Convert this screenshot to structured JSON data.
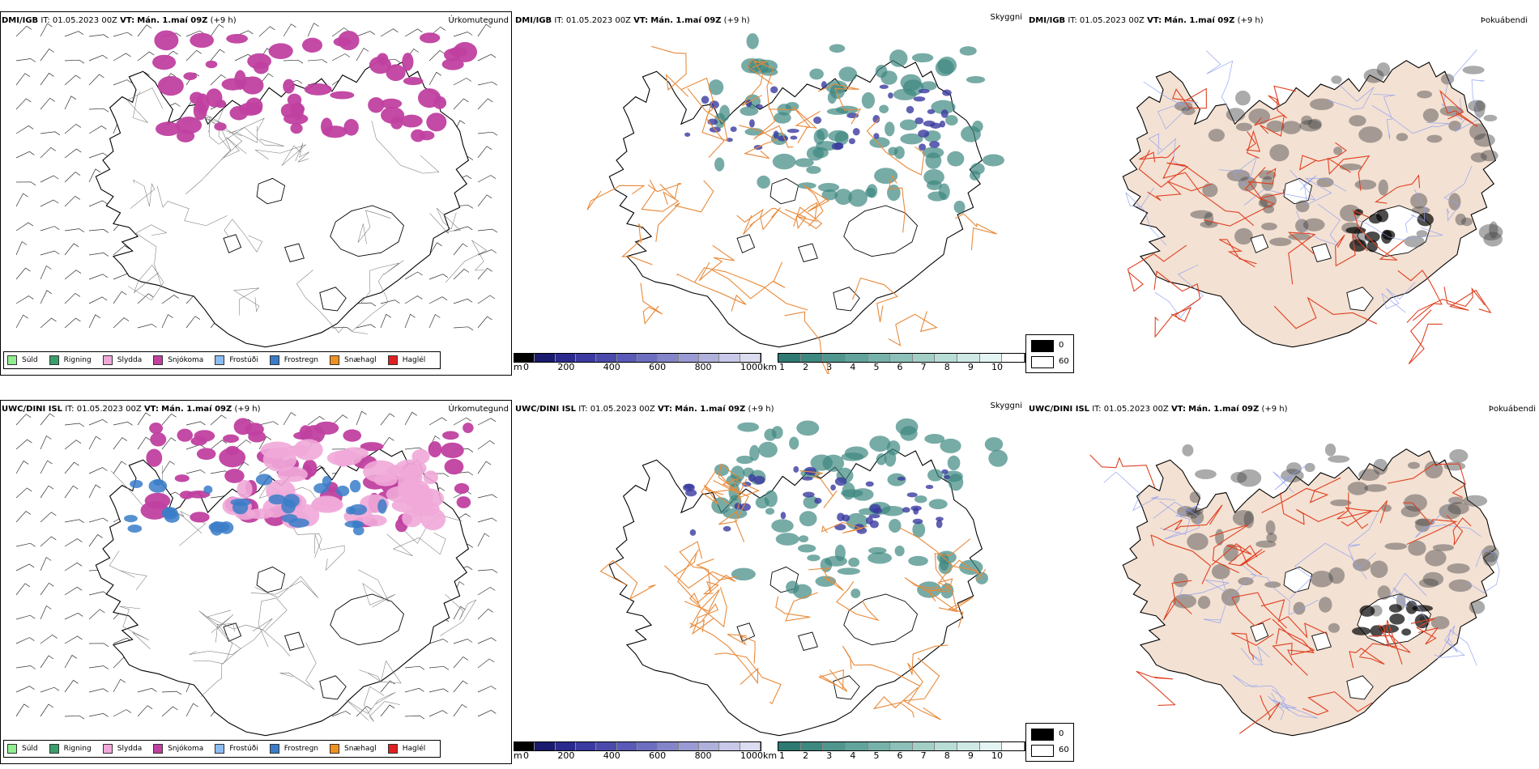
{
  "rows": [
    {
      "model_label": "DMI/IGB",
      "panels": [
        {
          "product": "Úrkomutegund"
        },
        {
          "product": "Skyggni"
        },
        {
          "product": "Þokuábendi"
        }
      ]
    },
    {
      "model_label": "UWC/DINI ISL",
      "panels": [
        {
          "product": "Úrkomutegund"
        },
        {
          "product": "Skyggni"
        },
        {
          "product": "Þokuábendi"
        }
      ]
    }
  ],
  "it_prefix": "IT:",
  "it_value": "01.05.2023 00Z",
  "vt_prefix": "VT:",
  "vt_value": "Mán. 1.maí 09Z",
  "lead": "(+9 h)",
  "precip_legend": [
    {
      "label": "Súld",
      "color": "#90ee90"
    },
    {
      "label": "Rigning",
      "color": "#3a9e6a"
    },
    {
      "label": "Slydda",
      "color": "#f0a8d8"
    },
    {
      "label": "Snjókoma",
      "color": "#c040a0"
    },
    {
      "label": "Frostúði",
      "color": "#8cbcf0"
    },
    {
      "label": "Frostregn",
      "color": "#3a7cc8"
    },
    {
      "label": "Snæhagl",
      "color": "#f09020"
    },
    {
      "label": "Haglél",
      "color": "#e02020"
    }
  ],
  "ceiling_bar": {
    "unit": "m",
    "ticks": [
      "0",
      "200",
      "400",
      "600",
      "800",
      "1000"
    ],
    "colors": [
      "#000000",
      "#1a1a6e",
      "#2a2a8e",
      "#3a3aa0",
      "#4a4aac",
      "#5a5ab8",
      "#6e6ec0",
      "#8484c8",
      "#9a9ad4",
      "#b0b0dc",
      "#c8c8e8",
      "#dcdcf0"
    ]
  },
  "visibility_bar": {
    "unit": "km",
    "ticks": [
      "1",
      "2",
      "3",
      "4",
      "5",
      "6",
      "7",
      "8",
      "9",
      "10"
    ],
    "colors": [
      "#2e7a72",
      "#3d8880",
      "#4f968e",
      "#62a49c",
      "#77b2aa",
      "#8cc0b8",
      "#a2cec6",
      "#b8dcd6",
      "#cee8e4",
      "#e4f4f2",
      "#ffffff"
    ]
  },
  "fog_legend": {
    "dark_label": "0",
    "light_label": "60",
    "dark_color": "#000000",
    "light_color": "#ffffff"
  },
  "map_colors": {
    "land": "#f3e1d3",
    "road_orange": "#e88a3a",
    "road_red": "#e04020",
    "river": "#8fa0f0",
    "coast": "#000000",
    "snow_purple": "#c040a0",
    "teal": "#3d8880",
    "ceiling_blue": "#3a3aa0",
    "fog_gray": "#444444"
  }
}
